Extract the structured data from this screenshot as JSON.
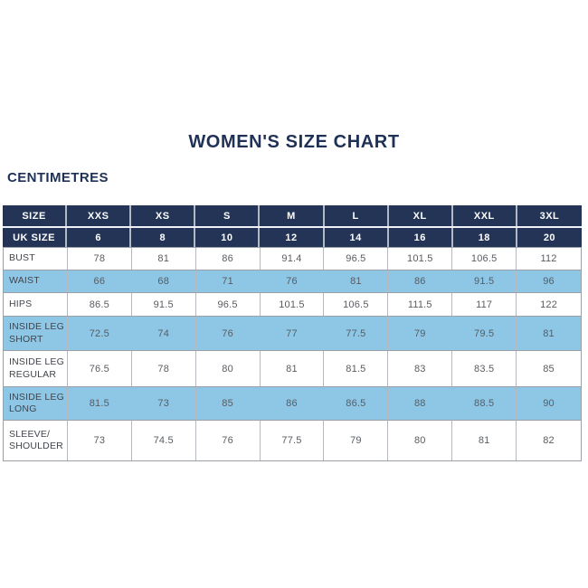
{
  "page": {
    "title": "WOMEN'S SIZE CHART",
    "unit_label": "CENTIMETRES"
  },
  "colors": {
    "navy": "#233457",
    "navy_text": "#1f3156",
    "light_blue": "#8ec7e6",
    "num_text": "#585c61",
    "label_text": "#41454b",
    "border_dark": "#9ba0a6",
    "border_light": "#b6bac0"
  },
  "chart_data": {
    "type": "table",
    "title": "WOMEN'S SIZE CHART",
    "unit_label": "CENTIMETRES",
    "columns": [
      "SIZE",
      "XXS",
      "XS",
      "S",
      "M",
      "L",
      "XL",
      "XXL",
      "3XL"
    ],
    "uk_sizes_row": {
      "label": "UK SIZE",
      "values": [
        "6",
        "8",
        "10",
        "12",
        "14",
        "16",
        "18",
        "20"
      ]
    },
    "rows": [
      {
        "label": "BUST",
        "values": [
          "78",
          "81",
          "86",
          "91.4",
          "96.5",
          "101.5",
          "106.5",
          "112"
        ]
      },
      {
        "label": "WAIST",
        "values": [
          "66",
          "68",
          "71",
          "76",
          "81",
          "86",
          "91.5",
          "96"
        ]
      },
      {
        "label": "HIPS",
        "values": [
          "86.5",
          "91.5",
          "96.5",
          "101.5",
          "106.5",
          "111.5",
          "117",
          "122"
        ]
      },
      {
        "label": "INSIDE LEG SHORT",
        "values": [
          "72.5",
          "74",
          "76",
          "77",
          "77.5",
          "79",
          "79.5",
          "81"
        ]
      },
      {
        "label": "INSIDE LEG REGULAR",
        "values": [
          "76.5",
          "78",
          "80",
          "81",
          "81.5",
          "83",
          "83.5",
          "85"
        ]
      },
      {
        "label": "INSIDE LEG LONG",
        "values": [
          "81.5",
          "73",
          "85",
          "86",
          "86.5",
          "88",
          "88.5",
          "90"
        ]
      },
      {
        "label": "SLEEVE/ SHOULDER",
        "values": [
          "73",
          "74.5",
          "76",
          "77.5",
          "79",
          "80",
          "81",
          "82"
        ]
      }
    ]
  }
}
